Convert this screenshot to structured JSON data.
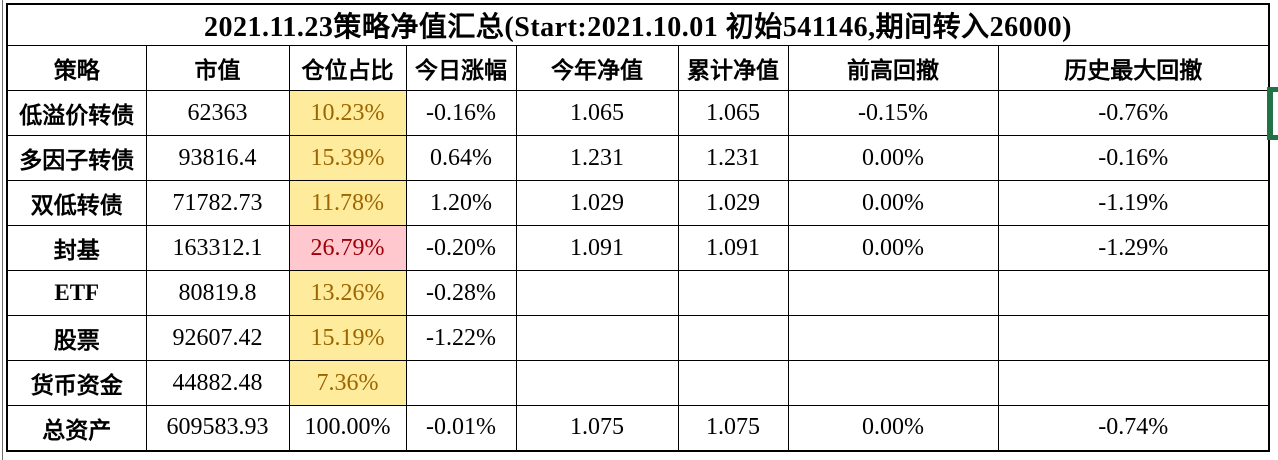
{
  "title": "2021.11.23策略净值汇总(Start:2021.10.01 初始541146,期间转入26000)",
  "styles": {
    "neutral_bg": "#FFEB9C",
    "neutral_text": "#9C6500",
    "bad_bg": "#FFC7CE",
    "bad_text": "#9C0006",
    "selection_green": "#217346",
    "grid_color": "#000000"
  },
  "table": {
    "columns": [
      "策略",
      "市值",
      "仓位占比",
      "今日涨幅",
      "今年净值",
      "累计净值",
      "前高回撤",
      "历史最大回撤"
    ],
    "row_fields": [
      "strategy",
      "market_value",
      "position_pct",
      "today_change",
      "ytd_nav",
      "cum_nav",
      "drawdown_from_high",
      "max_drawdown"
    ],
    "rows": [
      {
        "strategy": "低溢价转债",
        "market_value": "62363",
        "position_pct": "10.23%",
        "position_style": "neutral",
        "today_change": "-0.16%",
        "ytd_nav": "1.065",
        "cum_nav": "1.065",
        "drawdown_from_high": "-0.15%",
        "max_drawdown": "-0.76%"
      },
      {
        "strategy": "多因子转债",
        "market_value": "93816.4",
        "position_pct": "15.39%",
        "position_style": "neutral",
        "today_change": "0.64%",
        "ytd_nav": "1.231",
        "cum_nav": "1.231",
        "drawdown_from_high": "0.00%",
        "max_drawdown": "-0.16%"
      },
      {
        "strategy": "双低转债",
        "market_value": "71782.73",
        "position_pct": "11.78%",
        "position_style": "neutral",
        "today_change": "1.20%",
        "ytd_nav": "1.029",
        "cum_nav": "1.029",
        "drawdown_from_high": "0.00%",
        "max_drawdown": "-1.19%"
      },
      {
        "strategy": "封基",
        "market_value": "163312.1",
        "position_pct": "26.79%",
        "position_style": "bad",
        "today_change": "-0.20%",
        "ytd_nav": "1.091",
        "cum_nav": "1.091",
        "drawdown_from_high": "0.00%",
        "max_drawdown": "-1.29%"
      },
      {
        "strategy": "ETF",
        "market_value": "80819.8",
        "position_pct": "13.26%",
        "position_style": "neutral",
        "today_change": "-0.28%",
        "ytd_nav": "",
        "cum_nav": "",
        "drawdown_from_high": "",
        "max_drawdown": ""
      },
      {
        "strategy": "股票",
        "market_value": "92607.42",
        "position_pct": "15.19%",
        "position_style": "neutral",
        "today_change": "-1.22%",
        "ytd_nav": "",
        "cum_nav": "",
        "drawdown_from_high": "",
        "max_drawdown": ""
      },
      {
        "strategy": "货币资金",
        "market_value": "44882.48",
        "position_pct": "7.36%",
        "position_style": "neutral",
        "today_change": "",
        "ytd_nav": "",
        "cum_nav": "",
        "drawdown_from_high": "",
        "max_drawdown": ""
      },
      {
        "strategy": "总资产",
        "market_value": "609583.93",
        "position_pct": "100.00%",
        "position_style": "none",
        "today_change": "-0.01%",
        "ytd_nav": "1.075",
        "cum_nav": "1.075",
        "drawdown_from_high": "0.00%",
        "max_drawdown": "-0.74%"
      }
    ]
  }
}
